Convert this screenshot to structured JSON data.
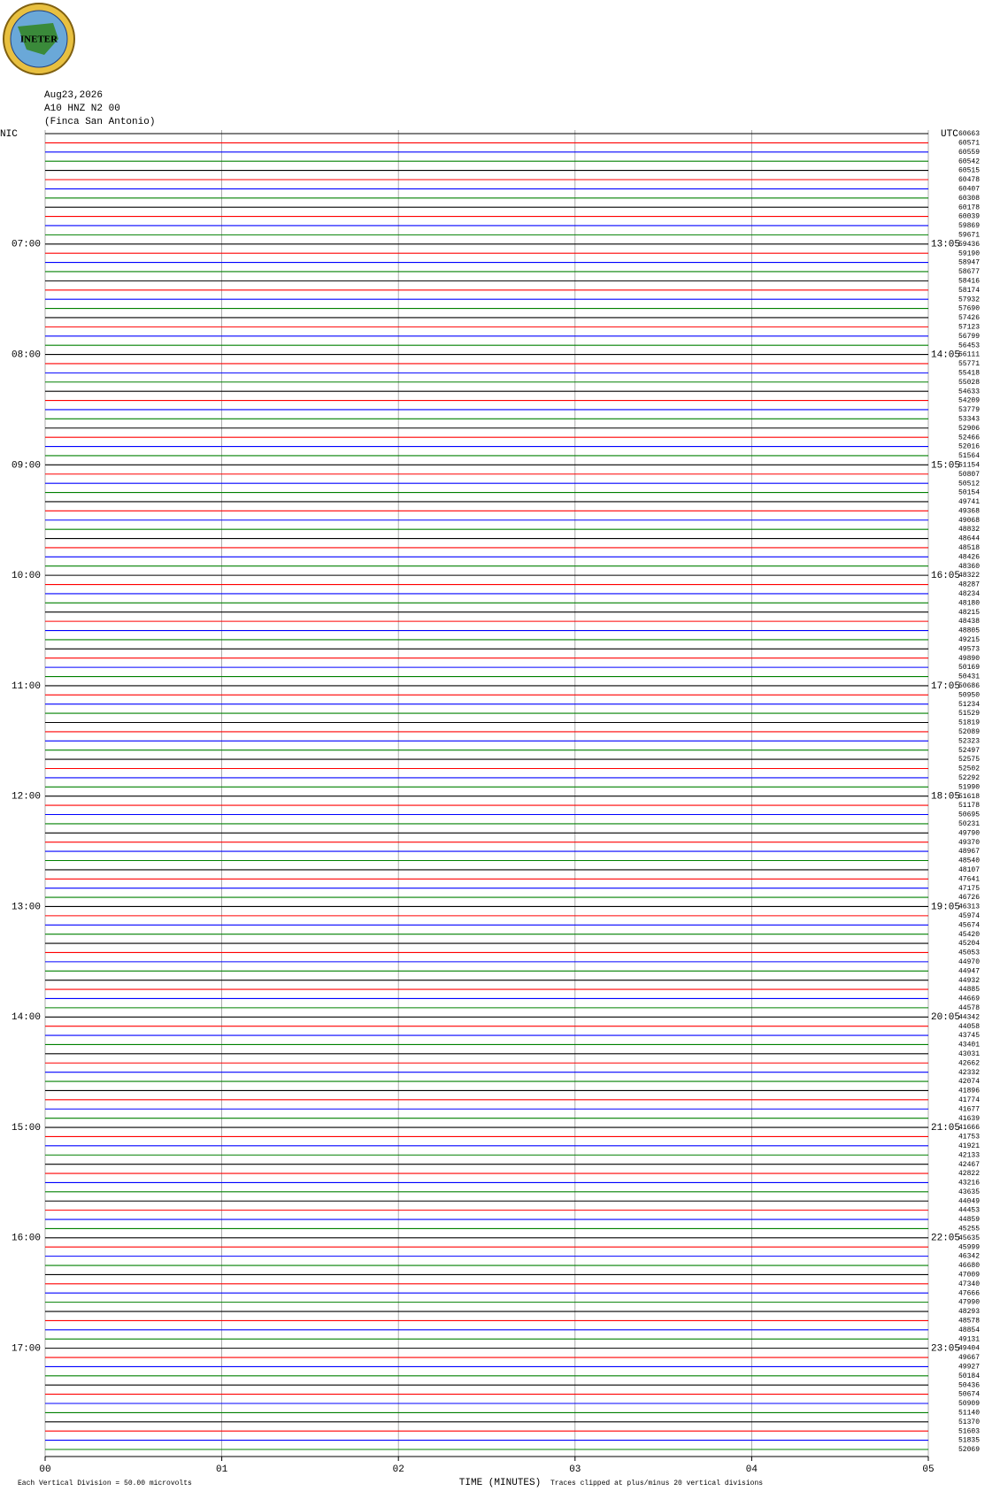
{
  "chart_data": {
    "type": "helicorder",
    "logo": "INETER",
    "date": "Aug23,2026",
    "station": "A10 HNZ N2 00",
    "site": "(Finca San Antonio)",
    "left_zone": "NIC",
    "right_zone": "UTC",
    "hour_labels_left": [
      "07:00",
      "08:00",
      "09:00",
      "10:00",
      "11:00",
      "12:00",
      "13:00",
      "14:00",
      "15:00",
      "16:00",
      "17:00"
    ],
    "hour_labels_right": [
      "13:05",
      "14:05",
      "15:05",
      "16:05",
      "17:05",
      "18:05",
      "19:05",
      "20:05",
      "21:05",
      "22:05",
      "23:05"
    ],
    "colors": [
      "#000000",
      "#ff0000",
      "#0000ff",
      "#008000"
    ],
    "trace_values": [
      60663,
      60571,
      60559,
      60542,
      60515,
      60478,
      60407,
      60308,
      60178,
      60039,
      59869,
      59671,
      59436,
      59190,
      58947,
      58677,
      58416,
      58174,
      57932,
      57690,
      57426,
      57123,
      56799,
      56453,
      56111,
      55771,
      55418,
      55028,
      54633,
      54209,
      53779,
      53343,
      52906,
      52466,
      52016,
      51564,
      51154,
      50807,
      50512,
      50154,
      49741,
      49368,
      49068,
      48832,
      48644,
      48518,
      48426,
      48360,
      48322,
      48287,
      48234,
      48180,
      48215,
      48438,
      48805,
      49215,
      49573,
      49890,
      50169,
      50431,
      50686,
      50950,
      51234,
      51529,
      51819,
      52089,
      52323,
      52497,
      52575,
      52502,
      52292,
      51990,
      51618,
      51178,
      50695,
      50231,
      49790,
      49370,
      48967,
      48540,
      48107,
      47641,
      47175,
      46726,
      46313,
      45974,
      45674,
      45420,
      45204,
      45053,
      44970,
      44947,
      44932,
      44885,
      44669,
      44578,
      44342,
      44058,
      43745,
      43401,
      43031,
      42662,
      42332,
      42074,
      41896,
      41774,
      41677,
      41639,
      41666,
      41753,
      41921,
      42133,
      42467,
      42822,
      43216,
      43635,
      44049,
      44453,
      44859,
      45255,
      45635,
      45999,
      46342,
      46680,
      47009,
      47340,
      47666,
      47990,
      48293,
      48578,
      48854,
      49131,
      49404,
      49667,
      49927,
      50184,
      50436,
      50674,
      50909,
      51140,
      51370,
      51603,
      51835,
      52069
    ],
    "xlim": [
      0,
      5
    ],
    "xticks": [
      {
        "value": 0,
        "label": "00"
      },
      {
        "value": 1,
        "label": "01"
      },
      {
        "value": 2,
        "label": "02"
      },
      {
        "value": 3,
        "label": "03"
      },
      {
        "value": 4,
        "label": "04"
      },
      {
        "value": 5,
        "label": "05"
      }
    ],
    "xlabel": "TIME (MINUTES)",
    "footer_left": "Each Vertical Division =   50.00 microvolts",
    "footer_right": "Traces clipped at plus/minus 20 vertical divisions"
  }
}
